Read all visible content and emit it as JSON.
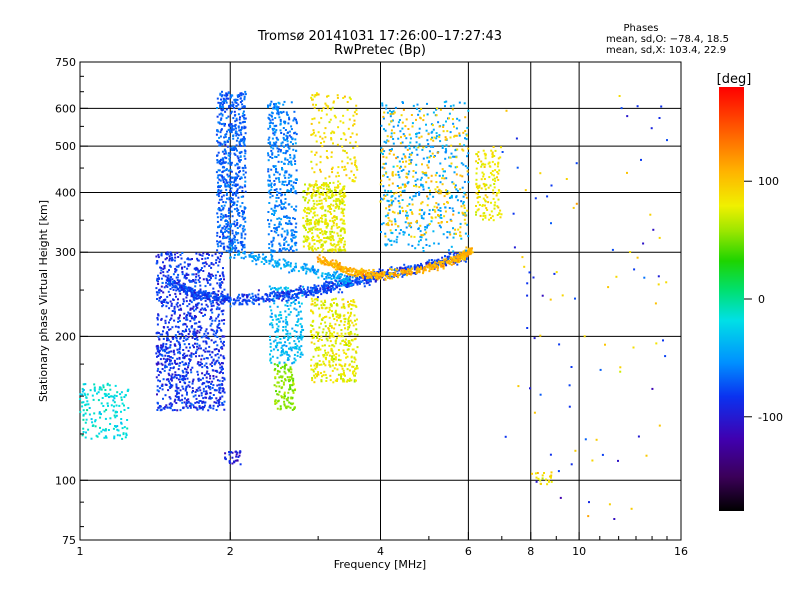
{
  "chart_data": {
    "type": "scatter",
    "title": "Tromsø 20141031 17:26:00–17:27:43",
    "subtitle": "RwPretec (Bp)",
    "xlabel": "Frequency [MHz]",
    "ylabel": "Stationary phase Virtual Height [km]",
    "x_scale": "log",
    "y_scale": "log",
    "xlim": [
      1,
      16
    ],
    "ylim": [
      75,
      750
    ],
    "x_ticks": [
      {
        "v": 1,
        "label": "1"
      },
      {
        "v": 2,
        "label": "2"
      },
      {
        "v": 4,
        "label": "4"
      },
      {
        "v": 6,
        "label": "6"
      },
      {
        "v": 8,
        "label": "8"
      },
      {
        "v": 10,
        "label": "10"
      },
      {
        "v": 16,
        "label": "16"
      }
    ],
    "y_ticks": [
      {
        "v": 75,
        "label": "75"
      },
      {
        "v": 100,
        "label": "100"
      },
      {
        "v": 200,
        "label": "200"
      },
      {
        "v": 300,
        "label": "300"
      },
      {
        "v": 400,
        "label": "400"
      },
      {
        "v": 500,
        "label": "500"
      },
      {
        "v": 600,
        "label": "600"
      },
      {
        "v": 750,
        "label": "750"
      }
    ],
    "grid_x": [
      2,
      4,
      6,
      8,
      10
    ],
    "grid_y": [
      100,
      200,
      300,
      400,
      500,
      600
    ],
    "phases": {
      "title": "Phases",
      "line1": "mean, sd,O: −78.4, 18.5",
      "line2": "mean, sd,X: 103.4, 22.9"
    },
    "colorbar": {
      "label": "[deg]",
      "min": -180,
      "max": 180,
      "ticks": [
        {
          "v": 100,
          "label": "100"
        },
        {
          "v": 0,
          "label": "0"
        },
        {
          "v": -100,
          "label": "-100"
        }
      ]
    },
    "traces": [
      {
        "name": "low-E",
        "type": "band",
        "f": [
          1.0,
          1.25
        ],
        "h": [
          122,
          160
        ],
        "phase": -30,
        "n": 160
      },
      {
        "name": "F-column-1.5MHz",
        "type": "band",
        "f": [
          1.42,
          1.95
        ],
        "h": [
          140,
          300
        ],
        "phase": -100,
        "n": 1100
      },
      {
        "name": "F-column-2MHz",
        "type": "band",
        "f": [
          1.88,
          2.15
        ],
        "h": [
          300,
          650
        ],
        "phase": -85,
        "n": 650
      },
      {
        "name": "F-column-2.5MHz",
        "type": "band",
        "f": [
          2.38,
          2.72
        ],
        "h": [
          300,
          620
        ],
        "phase": -75,
        "n": 420
      },
      {
        "name": "mid-column-2.5MHz",
        "type": "band",
        "f": [
          2.4,
          2.8
        ],
        "h": [
          175,
          255
        ],
        "phase": -50,
        "n": 220
      },
      {
        "name": "yellow-patch-low",
        "type": "band",
        "f": [
          2.45,
          2.7
        ],
        "h": [
          140,
          175
        ],
        "phase": 60,
        "n": 120
      },
      {
        "name": "X-patch-3MHz",
        "type": "band",
        "f": [
          2.9,
          3.6
        ],
        "h": [
          160,
          240
        ],
        "phase": 85,
        "n": 380
      },
      {
        "name": "X-patch-3MHz-high",
        "type": "band",
        "f": [
          2.8,
          3.4
        ],
        "h": [
          300,
          420
        ],
        "phase": 85,
        "n": 420
      },
      {
        "name": "X-column-3.3MHz",
        "type": "band",
        "f": [
          2.9,
          3.6
        ],
        "h": [
          420,
          650
        ],
        "phase": 95,
        "n": 150
      },
      {
        "name": "O-trace",
        "type": "curve",
        "pts": [
          [
            1.5,
            260
          ],
          [
            1.7,
            245
          ],
          [
            2.0,
            238
          ],
          [
            2.5,
            243
          ],
          [
            3.0,
            250
          ],
          [
            3.5,
            260
          ],
          [
            4.0,
            268
          ],
          [
            5.0,
            282
          ],
          [
            6.0,
            298
          ]
        ],
        "phase": -95,
        "n": 900,
        "spread": 0.04
      },
      {
        "name": "X-trace",
        "type": "curve",
        "pts": [
          [
            3.0,
            290
          ],
          [
            3.5,
            272
          ],
          [
            4.0,
            268
          ],
          [
            5.0,
            278
          ],
          [
            5.8,
            292
          ],
          [
            6.1,
            305
          ]
        ],
        "phase": 115,
        "n": 520,
        "spread": 0.03
      },
      {
        "name": "upper-O-trace",
        "type": "curve",
        "pts": [
          [
            2.0,
            300
          ],
          [
            2.5,
            285
          ],
          [
            3.0,
            272
          ],
          [
            3.5,
            260
          ]
        ],
        "phase": -60,
        "n": 200,
        "spread": 0.04
      },
      {
        "name": "scatter-4-6MHz",
        "type": "band",
        "f": [
          4.0,
          6.0
        ],
        "h": [
          300,
          620
        ],
        "phase": -60,
        "n": 380
      },
      {
        "name": "scatter-4-6MHz-X",
        "type": "band",
        "f": [
          4.0,
          6.0
        ],
        "h": [
          320,
          600
        ],
        "phase": 105,
        "n": 260
      },
      {
        "name": "spread-F-6.5MHz",
        "type": "band",
        "f": [
          6.2,
          7.0
        ],
        "h": [
          350,
          500
        ],
        "phase": 90,
        "n": 140
      },
      {
        "name": "sparse-high-f",
        "type": "band",
        "f": [
          7.0,
          15.0
        ],
        "h": [
          80,
          650
        ],
        "phase": -100,
        "n": 55
      },
      {
        "name": "sparse-high-f-X",
        "type": "band",
        "f": [
          7.0,
          15.0
        ],
        "h": [
          80,
          650
        ],
        "phase": 100,
        "n": 40
      },
      {
        "name": "E-echoes-2MHz",
        "type": "band",
        "f": [
          1.95,
          2.1
        ],
        "h": [
          108,
          116
        ],
        "phase": -110,
        "n": 30
      },
      {
        "name": "E-echoes-8-9MHz",
        "type": "band",
        "f": [
          8.0,
          9.0
        ],
        "h": [
          98,
          104
        ],
        "phase": 90,
        "n": 20
      }
    ]
  }
}
